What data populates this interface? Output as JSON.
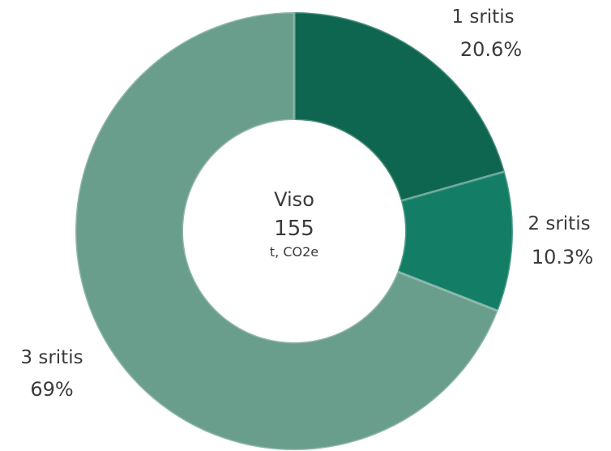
{
  "chart_data": {
    "type": "pie",
    "variant": "donut",
    "categories": [
      "1 sritis",
      "2 sritis",
      "3 sritis"
    ],
    "values": [
      20.6,
      10.3,
      69
    ],
    "value_labels": [
      "20.6%",
      "10.3%",
      "69%"
    ],
    "colors": [
      "#0f6650",
      "#137d66",
      "#6a9e8c"
    ],
    "center": {
      "title": "Viso",
      "value": "155",
      "unit": "t, CO2e"
    },
    "start_angle": "12 o'clock",
    "direction": "clockwise"
  }
}
